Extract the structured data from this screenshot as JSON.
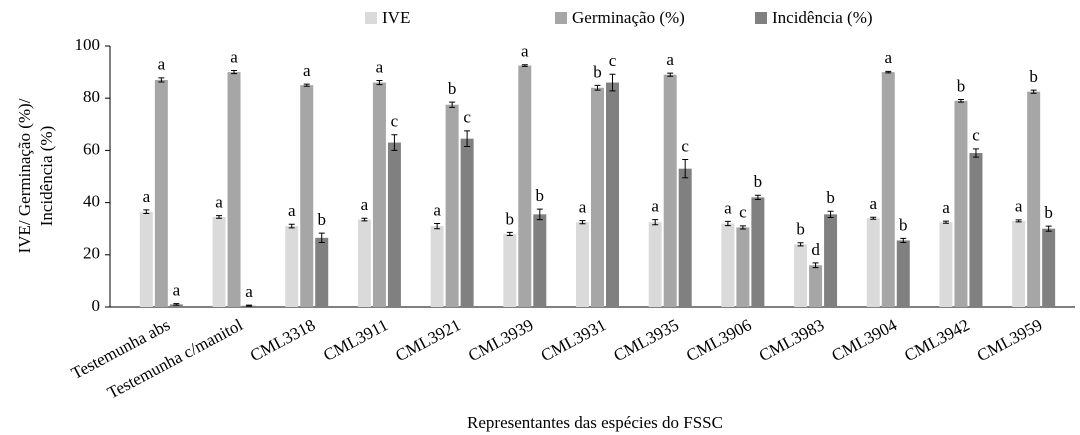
{
  "chart_data": {
    "type": "bar",
    "ylabel": [
      "IVE/ Germinação (%)/",
      "Incidência (%)"
    ],
    "xlabel": "Representantes das espécies do FSSC",
    "categories": [
      "Testemunha abs",
      "Testemunha c/manitol",
      "CML3318",
      "CML3911",
      "CML3921",
      "CML3939",
      "CML3931",
      "CML3935",
      "CML3906",
      "CML3983",
      "CML3904",
      "CML3942",
      "CML3959"
    ],
    "series": [
      {
        "name": "IVE",
        "color": "#dadada",
        "values": [
          36.5,
          34.5,
          31,
          33.5,
          31,
          28,
          32.5,
          32.5,
          32,
          24,
          34,
          32.5,
          33
        ],
        "errors": [
          0.7,
          0.5,
          0.7,
          0.5,
          1,
          0.6,
          0.6,
          1,
          0.8,
          0.6,
          0.4,
          0.4,
          0.4
        ],
        "letters": [
          "a",
          "a",
          "a",
          "a",
          "a",
          "b",
          "a",
          "a",
          "a",
          "b",
          "a",
          "a",
          "a"
        ]
      },
      {
        "name": "Germinação (%)",
        "color": "#a6a6a6",
        "values": [
          87,
          90,
          85,
          86,
          77.5,
          92.5,
          84,
          89,
          30.5,
          16,
          90,
          79,
          82.5
        ],
        "errors": [
          0.8,
          0.6,
          0.4,
          0.8,
          1,
          0.3,
          0.9,
          0.6,
          0.6,
          0.9,
          0.3,
          0.5,
          0.6
        ],
        "letters": [
          "a",
          "a",
          "a",
          "a",
          "b",
          "a",
          "b",
          "a",
          "c",
          "d",
          "a",
          "b",
          "b"
        ]
      },
      {
        "name": "Incidência (%)",
        "color": "#808080",
        "values": [
          1,
          0.5,
          26.5,
          63,
          64.5,
          35.5,
          86,
          53,
          42,
          35.5,
          25.5,
          59,
          30
        ],
        "errors": [
          0.3,
          0.2,
          1.8,
          3,
          3,
          2,
          3.2,
          3.5,
          0.8,
          1.2,
          0.8,
          1.6,
          1
        ],
        "letters": [
          "a",
          "a",
          "b",
          "c",
          "c",
          "b",
          "c",
          "c",
          "b",
          "b",
          "b",
          "c",
          "b"
        ]
      }
    ],
    "ylim": [
      0,
      100
    ],
    "yticks": [
      0,
      20,
      40,
      60,
      80,
      100
    ],
    "legend": "top"
  }
}
